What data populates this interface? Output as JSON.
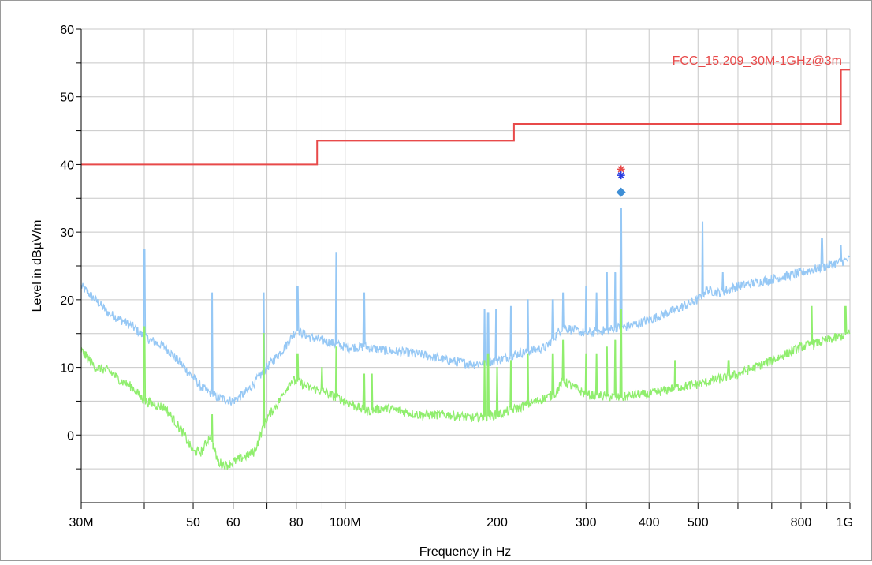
{
  "chart_data": {
    "type": "line",
    "title": "",
    "xlabel": "Frequency in Hz",
    "ylabel": "Level in dBµV/m",
    "x_scale": "log",
    "xlim": [
      30000000,
      1000000000
    ],
    "ylim": [
      -10,
      60
    ],
    "grid": true,
    "x_ticks": [
      {
        "value": 30000000,
        "label": "30M"
      },
      {
        "value": 50000000,
        "label": "50"
      },
      {
        "value": 60000000,
        "label": "60"
      },
      {
        "value": 80000000,
        "label": "80"
      },
      {
        "value": 100000000,
        "label": "100M"
      },
      {
        "value": 200000000,
        "label": "200"
      },
      {
        "value": 300000000,
        "label": "300"
      },
      {
        "value": 400000000,
        "label": "400"
      },
      {
        "value": 500000000,
        "label": "500"
      },
      {
        "value": 800000000,
        "label": "800"
      },
      {
        "value": 1000000000,
        "label": "1G"
      }
    ],
    "x_minor_ticks": [
      40000000,
      70000000,
      90000000,
      600000000,
      700000000,
      900000000
    ],
    "y_ticks": [
      {
        "value": 0,
        "label": "0"
      },
      {
        "value": 10,
        "label": "10"
      },
      {
        "value": 20,
        "label": "20"
      },
      {
        "value": 30,
        "label": "30"
      },
      {
        "value": 40,
        "label": "40"
      },
      {
        "value": 50,
        "label": "50"
      },
      {
        "value": 60,
        "label": "60"
      }
    ],
    "y_minor_ticks": [
      -5,
      5,
      15,
      25,
      35,
      45,
      55
    ],
    "limit_line": {
      "name": "FCC_15.209_30M-1GHz@3m",
      "color": "#e84a4a",
      "points": [
        [
          30000000,
          40
        ],
        [
          88000000,
          40
        ],
        [
          88000000,
          43.5
        ],
        [
          216000000,
          43.5
        ],
        [
          216000000,
          46
        ],
        [
          960000000,
          46
        ],
        [
          960000000,
          54
        ],
        [
          1000000000,
          54
        ]
      ]
    },
    "series": [
      {
        "name": "",
        "color": "#96c8f5",
        "x": [
          30000000,
          32000000,
          34000000,
          36000000,
          38000000,
          40000000,
          44000000,
          48000000,
          52000000,
          56000000,
          60000000,
          64000000,
          70000000,
          76000000,
          80000000,
          85000000,
          90000000,
          95000000,
          100000000,
          110000000,
          120000000,
          140000000,
          160000000,
          180000000,
          200000000,
          220000000,
          250000000,
          270000000,
          300000000,
          330000000,
          350000000,
          360000000,
          380000000,
          400000000,
          450000000,
          500000000,
          520000000,
          550000000,
          600000000,
          700000000,
          800000000,
          900000000,
          1000000000
        ],
        "values": [
          22,
          20,
          18,
          17,
          16,
          14.5,
          13,
          10,
          7,
          5.5,
          5,
          6.5,
          10,
          13,
          15.5,
          14.5,
          14,
          13.5,
          13,
          13,
          12.5,
          12,
          11,
          10.5,
          11,
          12,
          13,
          16,
          15,
          15.5,
          16,
          16,
          16.5,
          17,
          18.5,
          20,
          21.5,
          21,
          22,
          23,
          24,
          25,
          26
        ],
        "spikes": [
          [
            40000000,
            27.5
          ],
          [
            54500000,
            21
          ],
          [
            69000000,
            21
          ],
          [
            80500000,
            22
          ],
          [
            96000000,
            27
          ],
          [
            109000000,
            21
          ],
          [
            189000000,
            18.5
          ],
          [
            192000000,
            18
          ],
          [
            199000000,
            18.5
          ],
          [
            213000000,
            19
          ],
          [
            230000000,
            20
          ],
          [
            258000000,
            20
          ],
          [
            270000000,
            21
          ],
          [
            300000000,
            22
          ],
          [
            315000000,
            21
          ],
          [
            330000000,
            24
          ],
          [
            343000000,
            24
          ],
          [
            352000000,
            33.5
          ],
          [
            510000000,
            31.5
          ],
          [
            560000000,
            24
          ],
          [
            880000000,
            29
          ],
          [
            960000000,
            28
          ]
        ]
      },
      {
        "name": "",
        "color": "#90ee6e",
        "x": [
          30000000,
          32000000,
          34000000,
          36000000,
          38000000,
          40000000,
          42000000,
          44000000,
          46000000,
          48000000,
          50000000,
          52000000,
          54000000,
          56000000,
          58000000,
          62000000,
          66000000,
          70000000,
          74000000,
          78000000,
          80000000,
          85000000,
          90000000,
          100000000,
          110000000,
          120000000,
          140000000,
          160000000,
          180000000,
          200000000,
          220000000,
          240000000,
          260000000,
          270000000,
          300000000,
          350000000,
          380000000,
          400000000,
          450000000,
          500000000,
          600000000,
          700000000,
          800000000,
          900000000,
          1000000000
        ],
        "values": [
          12.5,
          10,
          9.5,
          8,
          7,
          5,
          4.5,
          4,
          2,
          0,
          -2.5,
          -2.5,
          0,
          -4,
          -4.5,
          -3.5,
          -2.5,
          2.5,
          5,
          8,
          8,
          7,
          6.5,
          5,
          3.5,
          4,
          3,
          3,
          2.5,
          3,
          4,
          5,
          6,
          8,
          6,
          5.5,
          6,
          6,
          7,
          7.5,
          9,
          11,
          13,
          14,
          15
        ],
        "spikes": [
          [
            40000000,
            16
          ],
          [
            54500000,
            3
          ],
          [
            69000000,
            15
          ],
          [
            80500000,
            12
          ],
          [
            90000000,
            10
          ],
          [
            96000000,
            13
          ],
          [
            109000000,
            9
          ],
          [
            113000000,
            9
          ],
          [
            189000000,
            11
          ],
          [
            192000000,
            12
          ],
          [
            200000000,
            10
          ],
          [
            213000000,
            11
          ],
          [
            230000000,
            12
          ],
          [
            258000000,
            12
          ],
          [
            270000000,
            14
          ],
          [
            300000000,
            12
          ],
          [
            315000000,
            12
          ],
          [
            330000000,
            13
          ],
          [
            343000000,
            14
          ],
          [
            352000000,
            18.5
          ],
          [
            450000000,
            11
          ],
          [
            575000000,
            11
          ],
          [
            840000000,
            19
          ],
          [
            980000000,
            19
          ]
        ]
      }
    ],
    "markers": [
      {
        "x": 352000000,
        "y": 39.3,
        "shape": "asterisk",
        "color": "#e84a4a"
      },
      {
        "x": 352000000,
        "y": 38.4,
        "shape": "asterisk",
        "color": "#2a3de0"
      },
      {
        "x": 352000000,
        "y": 35.9,
        "shape": "diamond",
        "color": "#3f8fd6"
      }
    ],
    "colors": {
      "grid": "#c8c8c8",
      "axis": "#000000",
      "frame": "#9a9a9a"
    }
  }
}
